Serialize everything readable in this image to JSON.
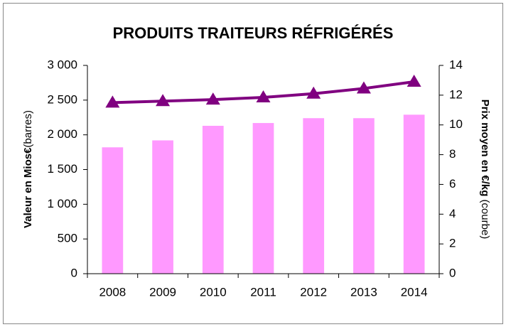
{
  "chart_data": {
    "type": "bar_line",
    "title": "PRODUITS TRAITEURS RÉFRIGÉRÉS",
    "ylabel": [
      "Valeur en Mios€",
      "(barres)"
    ],
    "y2label": [
      "Prix moyen en €/kg",
      "(courbe)"
    ],
    "categories": [
      "2008",
      "2009",
      "2010",
      "2011",
      "2012",
      "2013",
      "2014"
    ],
    "series": [
      {
        "type": "bar",
        "color": "#ff99ff",
        "values": [
          1820,
          1920,
          2130,
          2170,
          2240,
          2240,
          2290
        ]
      },
      {
        "type": "line",
        "axis": "y2",
        "color": "#800080",
        "values": [
          11.5,
          11.6,
          11.7,
          11.85,
          12.1,
          12.45,
          12.9
        ]
      }
    ],
    "ylim": [
      0,
      3000
    ],
    "yticks": [
      0,
      500,
      {
        "value": 1000,
        "label": "1 000"
      },
      {
        "value": 1500,
        "label": "1 500"
      },
      {
        "value": 2000,
        "label": "2 000"
      },
      {
        "value": 2500,
        "label": "2 500"
      },
      {
        "value": 3000,
        "label": "3 000"
      }
    ],
    "y2lim": [
      0,
      14
    ],
    "y2ticks": [
      0,
      2,
      4,
      6,
      8,
      10,
      12,
      14
    ]
  }
}
